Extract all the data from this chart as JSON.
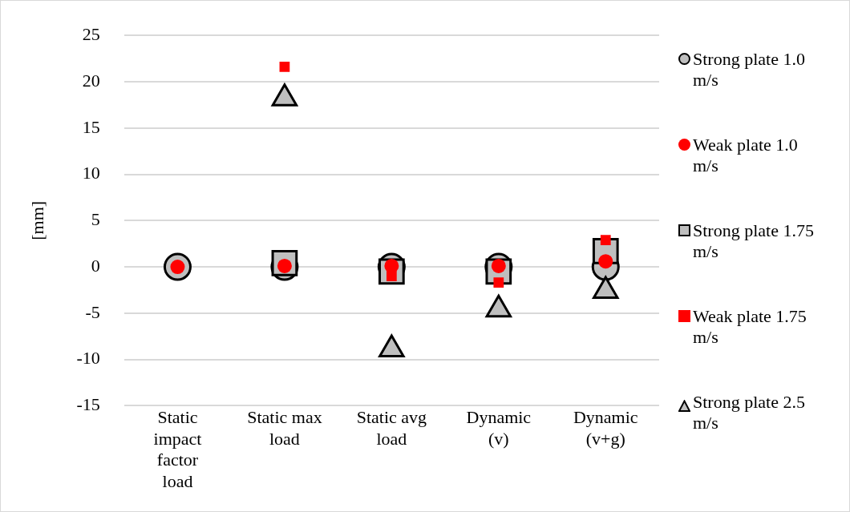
{
  "chart_data": {
    "type": "scatter",
    "ylabel": "[mm]",
    "categories": [
      "Static impact factor load",
      "Static max load",
      "Static avg load",
      "Dynamic (v)",
      "Dynamic (v+g)"
    ],
    "ylim": [
      -15,
      25
    ],
    "yticks": [
      -15,
      -10,
      -5,
      0,
      5,
      10,
      15,
      20,
      25
    ],
    "grid": "y",
    "legend": "right",
    "series": [
      {
        "name": "Strong plate 1.0 m/s",
        "color": "#bfbfbf",
        "marker": "circle",
        "values": [
          0,
          0,
          0,
          0,
          0
        ]
      },
      {
        "name": "Weak plate 1.0 m/s",
        "color": "#ff0000",
        "marker": "circle",
        "values": [
          0,
          0.1,
          0.1,
          0.1,
          0.6
        ]
      },
      {
        "name": "Strong plate 1.75 m/s",
        "color": "#bfbfbf",
        "marker": "square",
        "values": [
          null,
          0.4,
          -0.5,
          -0.5,
          1.7
        ]
      },
      {
        "name": "Weak plate 1.75 m/s",
        "color": "#ff0000",
        "marker": "square",
        "values": [
          null,
          21.6,
          -1.0,
          -1.7,
          2.9
        ]
      },
      {
        "name": "Strong plate 2.5 m/s",
        "color": "#bfbfbf",
        "marker": "triangle",
        "values": [
          null,
          18.2,
          -8.9,
          -4.6,
          -2.6
        ]
      }
    ]
  }
}
